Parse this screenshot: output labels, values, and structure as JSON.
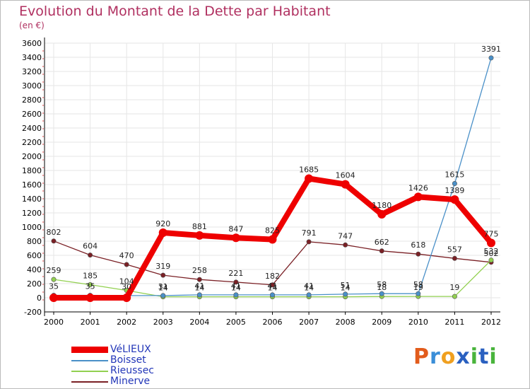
{
  "title": "Evolution du Montant de la Dette par Habitant",
  "subtitle": "(en €)",
  "logo": {
    "letters": [
      "P",
      "r",
      "o",
      "x",
      "i",
      "t",
      "i"
    ],
    "colors": [
      "#e25c1c",
      "#3a8ed8",
      "#f0a020",
      "#2a60c0",
      "#49b43c",
      "#2a60c0",
      "#49b43c"
    ]
  },
  "chart_data": {
    "type": "line",
    "x": [
      "2000",
      "2001",
      "2002",
      "2003",
      "2004",
      "2005",
      "2006",
      "2007",
      "2008",
      "2009",
      "2010",
      "2011",
      "2012"
    ],
    "ylim": [
      -200,
      3600
    ],
    "yticks": [
      -200,
      0,
      200,
      400,
      600,
      800,
      1000,
      1200,
      1400,
      1600,
      1800,
      2000,
      2200,
      2400,
      2600,
      2800,
      3000,
      3200,
      3400,
      3600
    ],
    "grid": true,
    "legend_position": "bottom-left",
    "series": [
      {
        "name": "Minerve",
        "color": "#7a2025",
        "values": [
          802,
          604,
          470,
          319,
          258,
          221,
          182,
          791,
          747,
          662,
          618,
          557,
          502
        ],
        "labels": [
          "802",
          "604",
          "470",
          "319",
          "258",
          "221",
          "182",
          "791",
          "747",
          "662",
          "618",
          "557",
          "502"
        ]
      },
      {
        "name": "Rieussec",
        "color": "#92d050",
        "values": [
          259,
          185,
          104,
          14,
          14,
          14,
          14,
          14,
          14,
          18,
          19,
          19,
          532
        ],
        "labels": [
          "259",
          "185",
          "104",
          "14",
          "14",
          "14",
          "14",
          "14",
          "14",
          "18",
          "19",
          "19",
          "532"
        ]
      },
      {
        "name": "Boisset",
        "color": "#4a90c8",
        "values": [
          35,
          35,
          30,
          31,
          41,
          41,
          41,
          41,
          51,
          58,
          58,
          1615,
          3391
        ],
        "labels": [
          "35",
          "35",
          "30",
          "31",
          "41",
          "41",
          "41",
          "41",
          "51",
          "58",
          "58",
          "1615",
          "3391"
        ]
      },
      {
        "name": "VéLIEUX",
        "color": "#ee0000",
        "values": [
          0,
          0,
          0,
          920,
          881,
          847,
          825,
          1685,
          1604,
          1180,
          1426,
          1389,
          775
        ],
        "labels": [
          "",
          "",
          "",
          "920",
          "881",
          "847",
          "825",
          "1685",
          "1604",
          "1180",
          "1426",
          "1389",
          "775"
        ]
      }
    ],
    "legend": [
      {
        "name": "VéLIEUX",
        "color": "#ee0000"
      },
      {
        "name": "Boisset",
        "color": "#4a90c8"
      },
      {
        "name": "Rieussec",
        "color": "#92d050"
      },
      {
        "name": "Minerve",
        "color": "#7a2025"
      }
    ]
  }
}
